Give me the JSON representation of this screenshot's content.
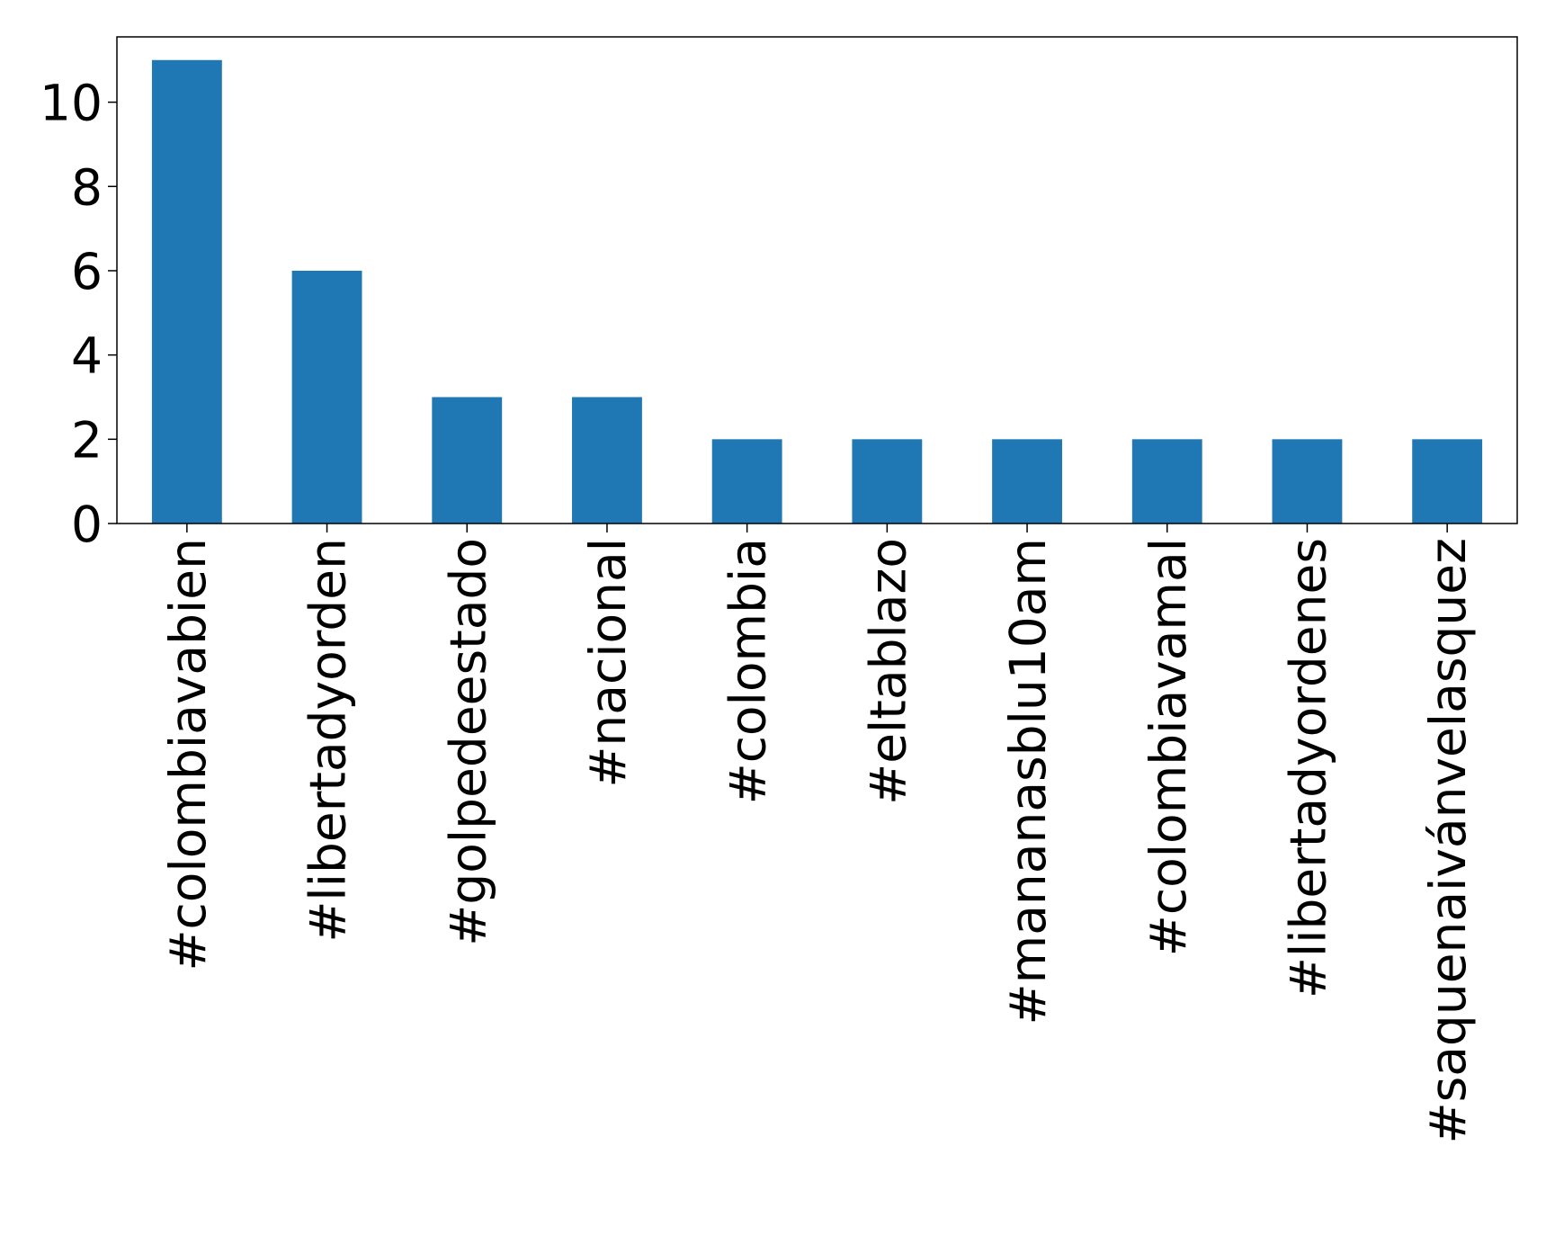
{
  "chart_data": {
    "type": "bar",
    "categories": [
      "#colombiavabien",
      "#libertadyorden",
      "#golpedeestado",
      "#nacional",
      "#colombia",
      "#eltablazo",
      "#mananasblu10am",
      "#colombiavamal",
      "#libertadyordenes",
      "#saquenaivánvelasquez"
    ],
    "values": [
      11,
      6,
      3,
      3,
      2,
      2,
      2,
      2,
      2,
      2
    ],
    "color": "#1f77b4",
    "ylim": [
      0,
      11.55
    ],
    "yticks": [
      0,
      2,
      4,
      6,
      8,
      10
    ],
    "grid": false
  }
}
